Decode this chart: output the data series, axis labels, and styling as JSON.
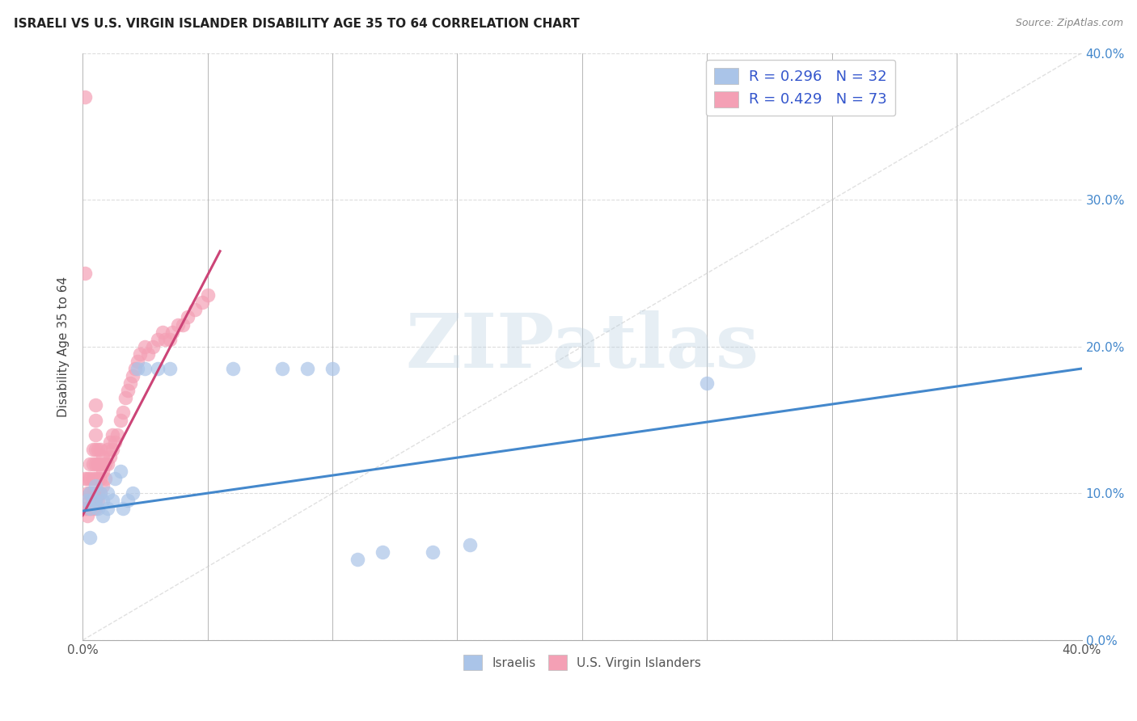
{
  "title": "ISRAELI VS U.S. VIRGIN ISLANDER DISABILITY AGE 35 TO 64 CORRELATION CHART",
  "source": "Source: ZipAtlas.com",
  "ylabel": "Disability Age 35 to 64",
  "xlim": [
    0.0,
    0.4
  ],
  "ylim": [
    0.0,
    0.4
  ],
  "ytick_vals": [
    0.0,
    0.1,
    0.2,
    0.3,
    0.4
  ],
  "xtick_vals": [
    0.0,
    0.05,
    0.1,
    0.15,
    0.2,
    0.25,
    0.3,
    0.35,
    0.4
  ],
  "watermark": "ZIPatlas",
  "blue_R": 0.296,
  "blue_N": 32,
  "pink_R": 0.429,
  "pink_N": 73,
  "blue_color": "#aac4e8",
  "pink_color": "#f4a0b5",
  "blue_line_color": "#4488cc",
  "pink_line_color": "#cc4477",
  "diagonal_color": "#cccccc",
  "grid_color": "#dddddd",
  "title_color": "#222222",
  "legend_text_color": "#3355cc",
  "blue_scatter_x": [
    0.002,
    0.003,
    0.003,
    0.004,
    0.005,
    0.005,
    0.006,
    0.007,
    0.008,
    0.008,
    0.01,
    0.01,
    0.012,
    0.013,
    0.015,
    0.016,
    0.018,
    0.02,
    0.022,
    0.025,
    0.03,
    0.035,
    0.06,
    0.08,
    0.09,
    0.1,
    0.11,
    0.12,
    0.14,
    0.155,
    0.25,
    0.003
  ],
  "blue_scatter_y": [
    0.095,
    0.09,
    0.1,
    0.095,
    0.095,
    0.105,
    0.09,
    0.1,
    0.085,
    0.095,
    0.09,
    0.1,
    0.095,
    0.11,
    0.115,
    0.09,
    0.095,
    0.1,
    0.185,
    0.185,
    0.185,
    0.185,
    0.185,
    0.185,
    0.185,
    0.185,
    0.055,
    0.06,
    0.06,
    0.065,
    0.175,
    0.07
  ],
  "pink_scatter_x": [
    0.001,
    0.001,
    0.002,
    0.002,
    0.002,
    0.002,
    0.003,
    0.003,
    0.003,
    0.003,
    0.003,
    0.004,
    0.004,
    0.004,
    0.004,
    0.004,
    0.004,
    0.005,
    0.005,
    0.005,
    0.005,
    0.005,
    0.005,
    0.005,
    0.005,
    0.005,
    0.006,
    0.006,
    0.006,
    0.006,
    0.006,
    0.007,
    0.007,
    0.007,
    0.007,
    0.008,
    0.008,
    0.008,
    0.009,
    0.009,
    0.01,
    0.01,
    0.011,
    0.011,
    0.012,
    0.012,
    0.013,
    0.014,
    0.015,
    0.016,
    0.017,
    0.018,
    0.019,
    0.02,
    0.021,
    0.022,
    0.023,
    0.025,
    0.026,
    0.028,
    0.03,
    0.032,
    0.033,
    0.035,
    0.036,
    0.038,
    0.04,
    0.042,
    0.045,
    0.048,
    0.05,
    0.001,
    0.001
  ],
  "pink_scatter_y": [
    0.09,
    0.11,
    0.085,
    0.09,
    0.1,
    0.11,
    0.09,
    0.095,
    0.1,
    0.11,
    0.12,
    0.09,
    0.095,
    0.1,
    0.11,
    0.12,
    0.13,
    0.09,
    0.095,
    0.1,
    0.11,
    0.12,
    0.13,
    0.14,
    0.15,
    0.16,
    0.095,
    0.1,
    0.11,
    0.12,
    0.13,
    0.1,
    0.11,
    0.12,
    0.13,
    0.105,
    0.115,
    0.125,
    0.11,
    0.12,
    0.12,
    0.13,
    0.125,
    0.135,
    0.13,
    0.14,
    0.135,
    0.14,
    0.15,
    0.155,
    0.165,
    0.17,
    0.175,
    0.18,
    0.185,
    0.19,
    0.195,
    0.2,
    0.195,
    0.2,
    0.205,
    0.21,
    0.205,
    0.205,
    0.21,
    0.215,
    0.215,
    0.22,
    0.225,
    0.23,
    0.235,
    0.25,
    0.37
  ],
  "pink_line_x0": 0.0,
  "pink_line_y0": 0.085,
  "pink_line_x1": 0.055,
  "pink_line_y1": 0.265,
  "blue_line_x0": 0.0,
  "blue_line_y0": 0.088,
  "blue_line_x1": 0.4,
  "blue_line_y1": 0.185
}
